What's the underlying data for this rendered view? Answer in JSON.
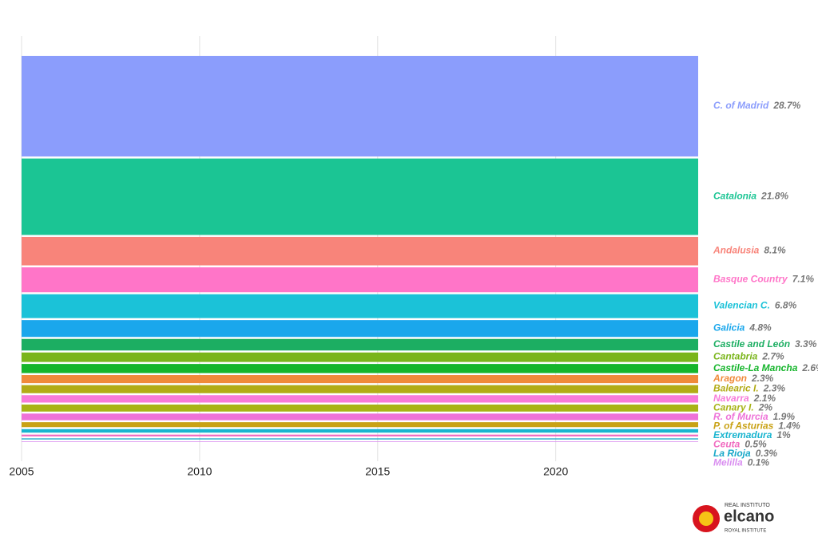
{
  "chart_data": {
    "type": "ranked-stream",
    "xlim": [
      2005,
      2024
    ],
    "xticks": [
      2005,
      2010,
      2015,
      2020
    ],
    "grid": true,
    "series": [
      {
        "name": "C. of Madrid",
        "color": "#8b9dfc",
        "values": [
          28.7
        ],
        "value_labels": [
          "28.7%"
        ]
      },
      {
        "name": "Catalonia",
        "color": "#1bc594",
        "values": [
          21.8
        ],
        "value_labels": [
          "21.8%"
        ]
      },
      {
        "name": "Andalusia",
        "color": "#f8847a",
        "values": [
          8.1
        ],
        "value_labels": [
          "8.1%"
        ]
      },
      {
        "name": "Basque Country",
        "color": "#ff75c8",
        "values": [
          7.1
        ],
        "value_labels": [
          "7.1%"
        ]
      },
      {
        "name": "Valencian C.",
        "color": "#1bc2d8",
        "values": [
          6.8
        ],
        "value_labels": [
          "6.8%"
        ]
      },
      {
        "name": "Galicia",
        "color": "#1aa7ec",
        "values": [
          4.8
        ],
        "value_labels": [
          "4.8%"
        ]
      },
      {
        "name": "Castile and León",
        "color": "#1cae62",
        "values": [
          3.3
        ],
        "value_labels": [
          "3.3%"
        ]
      },
      {
        "name": "Cantabria",
        "color": "#7ab51b",
        "values": [
          2.7
        ],
        "value_labels": [
          "2.7%"
        ]
      },
      {
        "name": "Castile-La Mancha",
        "color": "#16b52c",
        "values": [
          2.6
        ],
        "value_labels": [
          "2.6%"
        ]
      },
      {
        "name": "Aragon",
        "color": "#f08a3a",
        "values": [
          2.3
        ],
        "value_labels": [
          "2.3%"
        ]
      },
      {
        "name": "Balearic I.",
        "color": "#b2ab16",
        "values": [
          2.3
        ],
        "value_labels": [
          "2.3%"
        ]
      },
      {
        "name": "Navarra",
        "color": "#f77ad9",
        "values": [
          2.1
        ],
        "value_labels": [
          "2.1%"
        ]
      },
      {
        "name": "Canary I.",
        "color": "#a8b316",
        "values": [
          2
        ],
        "value_labels": [
          "2%"
        ]
      },
      {
        "name": "R. of Murcia",
        "color": "#ee72d8",
        "values": [
          1.9
        ],
        "value_labels": [
          "1.9%"
        ]
      },
      {
        "name": "P. of Asturias",
        "color": "#c9a215",
        "values": [
          1.4
        ],
        "value_labels": [
          "1.4%"
        ]
      },
      {
        "name": "Extremadura",
        "color": "#1ab5d0",
        "values": [
          1
        ],
        "value_labels": [
          "1%"
        ]
      },
      {
        "name": "Ceuta",
        "color": "#f06bc0",
        "values": [
          0.5
        ],
        "value_labels": [
          "0.5%"
        ]
      },
      {
        "name": "La Rioja",
        "color": "#18a8c8",
        "values": [
          0.3
        ],
        "value_labels": [
          "0.3%"
        ]
      },
      {
        "name": "Melilla",
        "color": "#d98ef0",
        "values": [
          0.1
        ],
        "value_labels": [
          "0.1%"
        ]
      }
    ]
  },
  "logo": {
    "top": "REAL INSTITUTO",
    "name": "elcano",
    "bottom": "ROYAL INSTITUTE"
  }
}
